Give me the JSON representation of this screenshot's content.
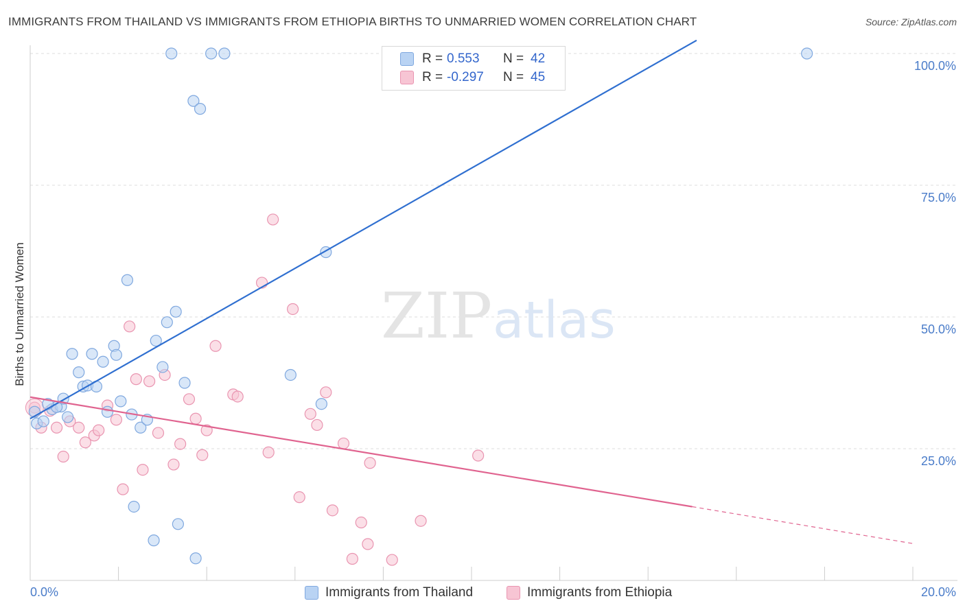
{
  "header": {
    "title": "IMMIGRANTS FROM THAILAND VS IMMIGRANTS FROM ETHIOPIA BIRTHS TO UNMARRIED WOMEN CORRELATION CHART",
    "source": "Source: ZipAtlas.com"
  },
  "watermark": {
    "zip": "ZIP",
    "atlas": "atlas"
  },
  "legend": {
    "rows": [
      {
        "r_label": "R =",
        "r_value": "0.553",
        "n_label": "N =",
        "n_value": "42"
      },
      {
        "r_label": "R =",
        "r_value": "-0.297",
        "n_label": "N =",
        "n_value": "45"
      }
    ]
  },
  "bottom_legend": {
    "thailand": "Immigrants from Thailand",
    "ethiopia": "Immigrants from Ethiopia"
  },
  "colors": {
    "thailand_fill": "#b9d3f3",
    "thailand_stroke": "#7fa8df",
    "thailand_line": "#2f6fd0",
    "ethiopia_fill": "#f7c5d4",
    "ethiopia_stroke": "#e994b0",
    "ethiopia_line": "#e0638f",
    "tick_text": "#4a7cc9",
    "grid": "#dddddd"
  },
  "chart_data": {
    "type": "scatter",
    "title": "IMMIGRANTS FROM THAILAND VS IMMIGRANTS FROM ETHIOPIA BIRTHS TO UNMARRIED WOMEN CORRELATION CHART",
    "xlabel": "",
    "ylabel": "Births to Unmarried Women",
    "xlim": [
      0,
      20
    ],
    "ylim": [
      0,
      100
    ],
    "x_tick_labels": [
      "0.0%",
      "20.0%"
    ],
    "y_tick_labels": [
      "25.0%",
      "50.0%",
      "75.0%",
      "100.0%"
    ],
    "y_tick_values": [
      25,
      50,
      75,
      100
    ],
    "grid": true,
    "legend_position": "top-center",
    "series": [
      {
        "name": "Immigrants from Thailand",
        "r": 0.553,
        "n": 42,
        "trend": {
          "x": [
            0.0,
            15.1
          ],
          "y": [
            30.7,
            102.5
          ]
        },
        "points": [
          [
            0.1,
            32.0
          ],
          [
            0.15,
            29.8
          ],
          [
            0.3,
            30.2
          ],
          [
            0.5,
            32.5
          ],
          [
            0.7,
            33.0
          ],
          [
            0.6,
            32.9
          ],
          [
            0.75,
            34.5
          ],
          [
            0.85,
            31.0
          ],
          [
            0.95,
            43.0
          ],
          [
            1.1,
            39.5
          ],
          [
            1.2,
            36.8
          ],
          [
            1.3,
            37.0
          ],
          [
            1.4,
            43.0
          ],
          [
            1.5,
            36.8
          ],
          [
            1.65,
            41.5
          ],
          [
            1.75,
            32.0
          ],
          [
            1.9,
            44.5
          ],
          [
            1.95,
            42.8
          ],
          [
            2.05,
            34.0
          ],
          [
            2.2,
            57.0
          ],
          [
            2.3,
            31.5
          ],
          [
            2.5,
            29.0
          ],
          [
            2.65,
            30.5
          ],
          [
            2.85,
            45.5
          ],
          [
            3.0,
            40.5
          ],
          [
            3.1,
            49.0
          ],
          [
            3.3,
            51.0
          ],
          [
            3.5,
            37.5
          ],
          [
            2.35,
            14.0
          ],
          [
            2.8,
            7.6
          ],
          [
            3.35,
            10.7
          ],
          [
            3.75,
            4.2
          ],
          [
            3.2,
            100.0
          ],
          [
            4.1,
            100.0
          ],
          [
            4.4,
            100.0
          ],
          [
            3.7,
            91.0
          ],
          [
            3.85,
            89.5
          ],
          [
            6.7,
            62.3
          ],
          [
            5.9,
            39.0
          ],
          [
            6.6,
            33.5
          ],
          [
            17.6,
            100.0
          ],
          [
            0.4,
            33.5
          ]
        ]
      },
      {
        "name": "Immigrants from Ethiopia",
        "r": -0.297,
        "n": 45,
        "trend": {
          "x": [
            0.0,
            15.0
          ],
          "y": [
            34.8,
            14.0
          ]
        },
        "trend_dashed": {
          "x": [
            15.0,
            20.0
          ],
          "y": [
            14.0,
            7.0
          ]
        },
        "points": [
          [
            0.1,
            32.8
          ],
          [
            0.25,
            29.0
          ],
          [
            0.45,
            32.2
          ],
          [
            0.6,
            29.0
          ],
          [
            0.75,
            23.5
          ],
          [
            0.9,
            30.2
          ],
          [
            1.1,
            29.0
          ],
          [
            1.25,
            26.2
          ],
          [
            1.45,
            27.5
          ],
          [
            1.55,
            28.5
          ],
          [
            1.75,
            33.2
          ],
          [
            1.95,
            30.5
          ],
          [
            2.1,
            17.3
          ],
          [
            2.25,
            48.2
          ],
          [
            2.4,
            38.2
          ],
          [
            2.55,
            21.0
          ],
          [
            2.7,
            37.8
          ],
          [
            2.9,
            28.0
          ],
          [
            3.05,
            39.0
          ],
          [
            3.25,
            22.0
          ],
          [
            3.4,
            25.9
          ],
          [
            3.6,
            34.4
          ],
          [
            3.75,
            30.7
          ],
          [
            3.9,
            23.8
          ],
          [
            4.0,
            28.5
          ],
          [
            4.2,
            44.5
          ],
          [
            4.6,
            35.3
          ],
          [
            4.7,
            34.9
          ],
          [
            5.25,
            56.5
          ],
          [
            5.5,
            68.5
          ],
          [
            5.4,
            24.3
          ],
          [
            5.95,
            51.5
          ],
          [
            6.1,
            15.8
          ],
          [
            6.35,
            31.6
          ],
          [
            6.5,
            29.5
          ],
          [
            6.7,
            35.7
          ],
          [
            6.85,
            13.3
          ],
          [
            7.1,
            26.0
          ],
          [
            7.3,
            4.1
          ],
          [
            7.5,
            11.0
          ],
          [
            7.65,
            6.9
          ],
          [
            7.7,
            22.3
          ],
          [
            8.2,
            3.9
          ],
          [
            8.85,
            11.3
          ],
          [
            10.15,
            23.7
          ]
        ]
      }
    ]
  }
}
